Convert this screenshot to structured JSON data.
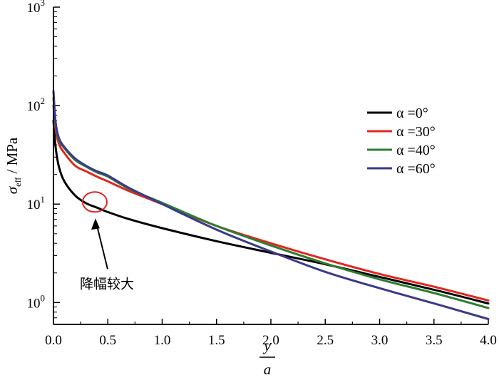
{
  "chart_data": {
    "type": "line",
    "title": "",
    "xlabel": {
      "numerator": "y",
      "denominator": "a"
    },
    "ylabel": {
      "symbol": "σ",
      "subscript": "eff",
      "unit": " / MPa"
    },
    "xlim": [
      0,
      4.0
    ],
    "ylim": [
      0.6,
      1000
    ],
    "yscale": "log",
    "xticks": [
      "0.0",
      "0.5",
      "1.0",
      "1.5",
      "2.0",
      "2.5",
      "3.0",
      "3.5",
      "4.0"
    ],
    "yticks": [
      {
        "base": "10",
        "exp": "0",
        "value": 1
      },
      {
        "base": "10",
        "exp": "1",
        "value": 10
      },
      {
        "base": "10",
        "exp": "2",
        "value": 100
      },
      {
        "base": "10",
        "exp": "3",
        "value": 1000
      }
    ],
    "legend_position": "right",
    "series": [
      {
        "name": "α =0°",
        "color": "#000000",
        "x": [
          0.0,
          0.02,
          0.05,
          0.1,
          0.2,
          0.3,
          0.4,
          0.5,
          0.7,
          1.0,
          1.5,
          2.0,
          2.5,
          3.0,
          3.5,
          4.0
        ],
        "y": [
          70,
          38,
          24,
          17,
          12.2,
          10.2,
          9.2,
          8.3,
          7.0,
          5.7,
          4.2,
          3.2,
          2.45,
          1.82,
          1.35,
          0.98
        ]
      },
      {
        "name": "α =30°",
        "color": "#e0261f",
        "x": [
          0.0,
          0.02,
          0.05,
          0.1,
          0.2,
          0.3,
          0.4,
          0.5,
          0.7,
          1.0,
          1.5,
          2.0,
          2.5,
          3.0,
          3.5,
          4.0
        ],
        "y": [
          100,
          58,
          41,
          33,
          24.5,
          21.5,
          19.0,
          17.0,
          13.5,
          10.0,
          6.0,
          4.0,
          2.75,
          1.95,
          1.45,
          1.05
        ]
      },
      {
        "name": "α =40°",
        "color": "#2e7d32",
        "x": [
          0.0,
          0.02,
          0.05,
          0.1,
          0.2,
          0.3,
          0.4,
          0.5,
          0.7,
          1.0,
          1.5,
          2.0,
          2.5,
          3.0,
          3.5,
          4.0
        ],
        "y": [
          120,
          65,
          45,
          37,
          28,
          24,
          21,
          19.0,
          14.2,
          10.3,
          6.0,
          3.8,
          2.5,
          1.72,
          1.25,
          0.88
        ]
      },
      {
        "name": "α =60°",
        "color": "#3a3a8a",
        "x": [
          0.0,
          0.02,
          0.05,
          0.1,
          0.2,
          0.3,
          0.4,
          0.5,
          0.7,
          1.0,
          1.5,
          2.0,
          2.5,
          3.0,
          3.5,
          4.0
        ],
        "y": [
          140,
          68,
          47,
          38,
          29,
          24.5,
          21.5,
          19.5,
          14.5,
          10.0,
          5.5,
          3.3,
          2.05,
          1.4,
          0.98,
          0.68
        ]
      }
    ],
    "annotation": {
      "text": "降幅较大",
      "target_x": 0.38,
      "target_y": 10.5,
      "color": "#e0261f"
    }
  }
}
